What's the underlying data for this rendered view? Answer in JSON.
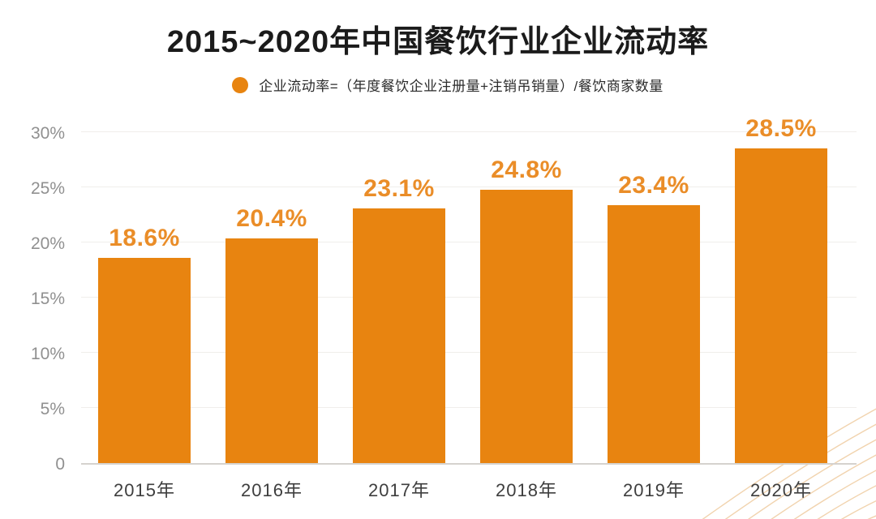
{
  "title": "2015~2020年中国餐饮行业企业流动率",
  "legend": {
    "label": "企业流动率=（年度餐饮企业注册量+注销吊销量）/餐饮商家数量"
  },
  "colors": {
    "bar": "#E88410",
    "value_label": "#EA8D28",
    "title_text": "#1B1B1B",
    "legend_text": "#2B2B2B",
    "axis_text": "#909090",
    "x_label_text": "#3E3E3E",
    "gridline": "#F0EEEB",
    "baseline": "#D5D2CE",
    "deco_line": "#F1D3AE",
    "background": "#FFFFFF"
  },
  "chart_data": {
    "type": "bar",
    "title": "2015~2020年中国餐饮行业企业流动率",
    "categories": [
      "2015年",
      "2016年",
      "2017年",
      "2018年",
      "2019年",
      "2020年"
    ],
    "values": [
      18.6,
      20.4,
      23.1,
      24.8,
      23.4,
      28.5
    ],
    "value_labels": [
      "18.6%",
      "20.4%",
      "23.1%",
      "24.8%",
      "23.4%",
      "28.5%"
    ],
    "xlabel": "",
    "ylabel": "",
    "ylim": [
      0,
      30
    ],
    "y_tick_values": [
      30,
      25,
      20,
      15,
      10,
      5,
      0
    ],
    "y_tick_labels": [
      "30%",
      "25%",
      "20%",
      "15%",
      "10%",
      "5%",
      "0"
    ],
    "grid": true,
    "legend_position": "top",
    "legend_entries": [
      "企业流动率=（年度餐饮企业注册量+注销吊销量）/餐饮商家数量"
    ]
  }
}
